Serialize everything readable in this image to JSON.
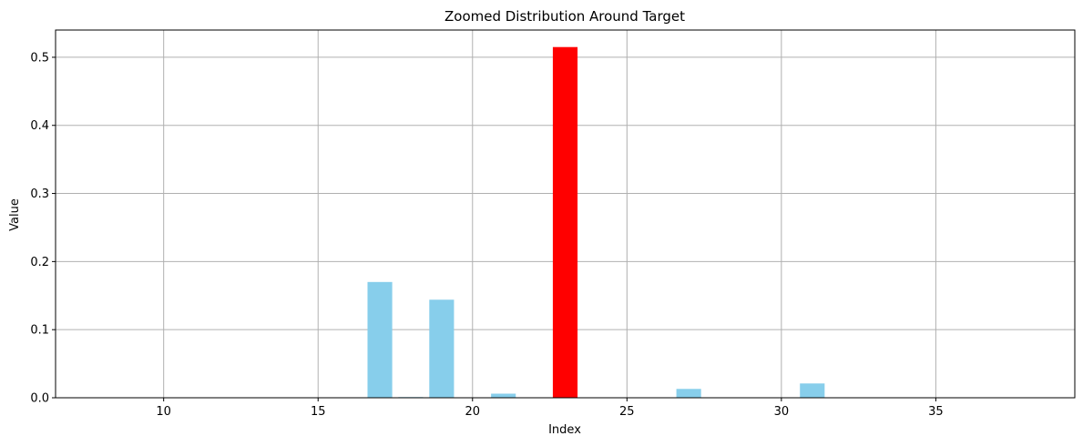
{
  "chart_data": {
    "type": "bar",
    "title": "Zoomed Distribution Around Target",
    "xlabel": "Index",
    "ylabel": "Value",
    "xlim": [
      6.5,
      39.5
    ],
    "ylim": [
      0,
      0.54
    ],
    "xticks": [
      10,
      15,
      20,
      25,
      30,
      35
    ],
    "yticks": [
      0.0,
      0.1,
      0.2,
      0.3,
      0.4,
      0.5
    ],
    "grid": true,
    "bar_width": 0.8,
    "colors": {
      "default": "#87ceeb",
      "highlight": "#ff0000",
      "grid": "#b0b0b0"
    },
    "bars": [
      {
        "x": 8,
        "value": 0.0
      },
      {
        "x": 9,
        "value": 0.0
      },
      {
        "x": 10,
        "value": 0.0
      },
      {
        "x": 11,
        "value": 0.0
      },
      {
        "x": 12,
        "value": 0.0
      },
      {
        "x": 13,
        "value": 0.0
      },
      {
        "x": 14,
        "value": 0.0
      },
      {
        "x": 15,
        "value": 0.0
      },
      {
        "x": 16,
        "value": 0.0
      },
      {
        "x": 17,
        "value": 0.17
      },
      {
        "x": 18,
        "value": 0.001
      },
      {
        "x": 19,
        "value": 0.144
      },
      {
        "x": 20,
        "value": 0.0
      },
      {
        "x": 21,
        "value": 0.006
      },
      {
        "x": 22,
        "value": 0.0
      },
      {
        "x": 23,
        "value": 0.515,
        "highlight": true
      },
      {
        "x": 24,
        "value": 0.0
      },
      {
        "x": 25,
        "value": 0.0
      },
      {
        "x": 26,
        "value": 0.0
      },
      {
        "x": 27,
        "value": 0.013
      },
      {
        "x": 28,
        "value": 0.0
      },
      {
        "x": 29,
        "value": 0.0
      },
      {
        "x": 30,
        "value": 0.0
      },
      {
        "x": 31,
        "value": 0.021
      },
      {
        "x": 32,
        "value": 0.0
      },
      {
        "x": 33,
        "value": 0.0
      },
      {
        "x": 34,
        "value": 0.0
      },
      {
        "x": 35,
        "value": 0.0
      },
      {
        "x": 36,
        "value": 0.0
      },
      {
        "x": 37,
        "value": 0.0
      },
      {
        "x": 38,
        "value": 0.0
      }
    ]
  }
}
